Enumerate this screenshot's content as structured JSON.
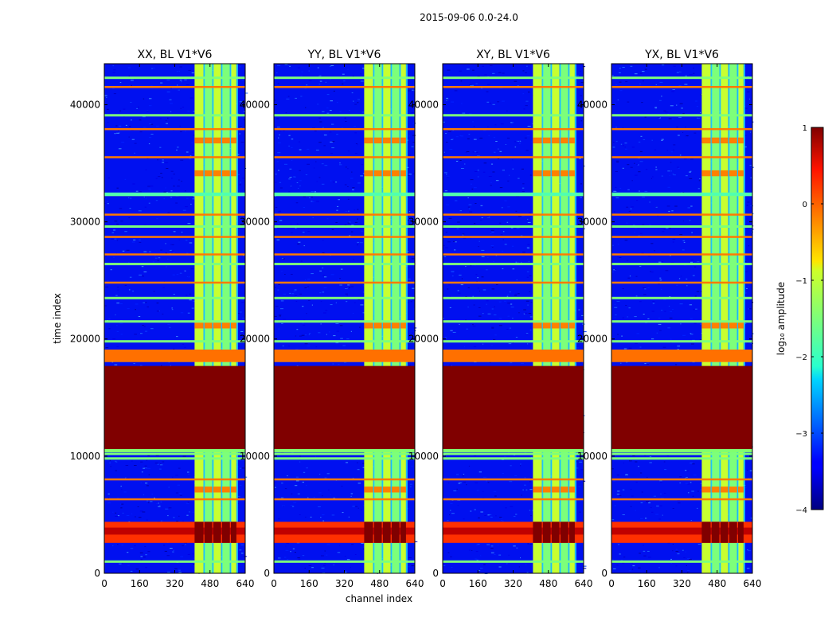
{
  "chart_data": {
    "type": "heatmap",
    "suptitle": "2015-09-06 0.0-24.0",
    "xlabel": "channel index",
    "ylabel": "time index",
    "xlim": [
      0,
      640
    ],
    "ylim": [
      0,
      43500
    ],
    "xticks": [
      "0",
      "160",
      "320",
      "480",
      "640"
    ],
    "yticks": [
      "0",
      "10000",
      "20000",
      "30000",
      "40000"
    ],
    "colormap": "jet",
    "colorbar": {
      "label": "log₁₀ amplitude",
      "ticks": [
        "1",
        "0",
        "−1",
        "−2",
        "−3",
        "−4"
      ],
      "range": [
        -4,
        1
      ]
    },
    "panels": [
      {
        "title": "XX, BL V1*V6"
      },
      {
        "title": "YY, BL V1*V6"
      },
      {
        "title": "XY, BL V1*V6"
      },
      {
        "title": "YX, BL V1*V6"
      }
    ],
    "features": {
      "saturated_block_time": [
        10600,
        17700
      ],
      "band_channels": [
        410,
        600
      ],
      "band_columns": [
        [
          410,
          450
        ],
        [
          455,
          490
        ],
        [
          495,
          530
        ],
        [
          535,
          570
        ],
        [
          575,
          600
        ]
      ],
      "bright_band_time": [
        2600,
        4400
      ],
      "stripe_times_hot": [
        4100,
        6400,
        8100,
        18200,
        18800,
        24900,
        27300,
        28800,
        30700,
        35600,
        38000,
        41600
      ],
      "stripe_times_warm": [
        1100,
        9900,
        10300,
        19900,
        21600,
        23600,
        26500,
        29700,
        32400,
        39200,
        42400
      ]
    }
  }
}
